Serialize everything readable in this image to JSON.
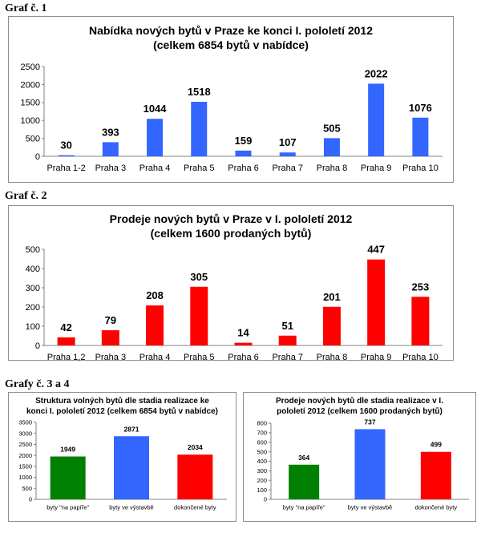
{
  "headings": {
    "graf1": "Graf č. 1",
    "graf2": "Graf č. 2",
    "graf34": "Grafy č. 3 a 4"
  },
  "chart_data": [
    {
      "type": "bar",
      "title": "Nabídka nových bytů v Praze ke konci I. pololetí 2012",
      "subtitle": "(celkem 6854 bytů v nabídce)",
      "categories": [
        "Praha 1-2",
        "Praha 3",
        "Praha 4",
        "Praha 5",
        "Praha 6",
        "Praha 7",
        "Praha 8",
        "Praha 9",
        "Praha 10"
      ],
      "values": [
        30,
        393,
        1044,
        1518,
        159,
        107,
        505,
        2022,
        1076
      ],
      "ylim": [
        0,
        2500
      ],
      "yticks": [
        0,
        500,
        1000,
        1500,
        2000,
        2500
      ],
      "colors": [
        "#3366ff"
      ],
      "grid": false,
      "legend": "none"
    },
    {
      "type": "bar",
      "title": "Prodeje nových bytů v Praze v I. pololetí 2012",
      "subtitle": "(celkem 1600 prodaných bytů)",
      "categories": [
        "Praha 1,2",
        "Praha 3",
        "Praha 4",
        "Praha 5",
        "Praha 6",
        "Praha 7",
        "Praha 8",
        "Praha 9",
        "Praha 10"
      ],
      "values": [
        42,
        79,
        208,
        305,
        14,
        51,
        201,
        447,
        253
      ],
      "ylim": [
        0,
        500
      ],
      "yticks": [
        0,
        100,
        200,
        300,
        400,
        500
      ],
      "colors": [
        "#ff0000"
      ],
      "grid": false,
      "legend": "none"
    },
    {
      "type": "bar",
      "title": "Struktura volných bytů dle stadia realizace ke",
      "subtitle": "konci I. pololetí 2012 (celkem 6854 bytů v nabídce)",
      "categories": [
        "byty \"na papíře\"",
        "byty ve výstavbě",
        "dokončené byty"
      ],
      "values": [
        1949,
        2871,
        2034
      ],
      "ylim": [
        0,
        3500
      ],
      "yticks": [
        0,
        500,
        1000,
        1500,
        2000,
        2500,
        3000,
        3500
      ],
      "colors": [
        "#008000",
        "#3366ff",
        "#ff0000"
      ],
      "grid": false,
      "legend": "none"
    },
    {
      "type": "bar",
      "title": "Prodeje nových bytů dle stadia realizace v I.",
      "subtitle": "pololetí 2012 (celkem 1600 prodaných bytů)",
      "categories": [
        "byty \"na papíře\"",
        "byty ve výstavbě",
        "dokončené byty"
      ],
      "values": [
        364,
        737,
        499
      ],
      "ylim": [
        0,
        800
      ],
      "yticks": [
        0,
        100,
        200,
        300,
        400,
        500,
        600,
        700,
        800
      ],
      "colors": [
        "#008000",
        "#3366ff",
        "#ff0000"
      ],
      "grid": false,
      "legend": "none"
    }
  ]
}
